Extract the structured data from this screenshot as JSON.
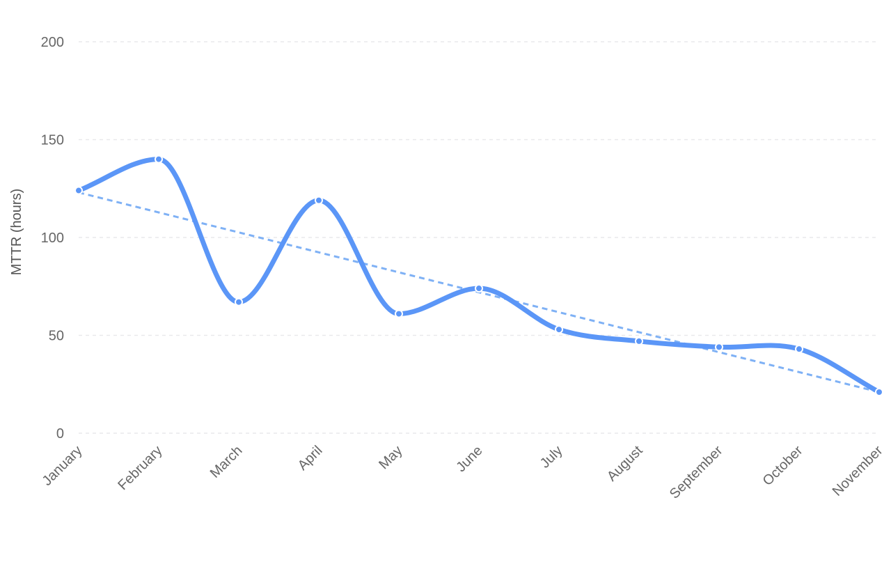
{
  "chart_data": {
    "type": "line",
    "ylabel": "MTTR (hours)",
    "xlabel": "",
    "categories": [
      "January",
      "February",
      "March",
      "April",
      "May",
      "June",
      "July",
      "August",
      "September",
      "October",
      "November"
    ],
    "y_ticks": [
      "0",
      "50",
      "100",
      "150",
      "200"
    ],
    "ylim": [
      0,
      200
    ],
    "grid": true,
    "series": [
      {
        "values": [
          124,
          140,
          67,
          119,
          61,
          74,
          53,
          47,
          44,
          43,
          21
        ],
        "color": "#5b96f7",
        "smooth": true
      }
    ],
    "trendline": {
      "start": 123,
      "end": 21,
      "color": "#7fb1f5",
      "style": "dashed"
    }
  }
}
